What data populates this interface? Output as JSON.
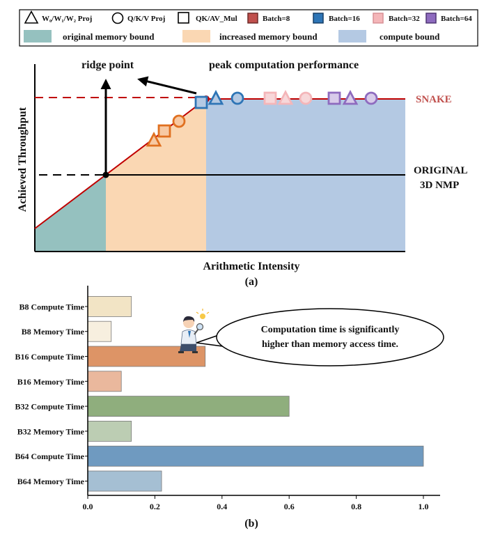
{
  "chart_data": [
    {
      "type": "area",
      "subtitle": "(a)",
      "xlabel": "Arithmetic Intensity",
      "ylabel": "Achieved Throughput",
      "legend": {
        "placement": "top",
        "markers": [
          {
            "shape": "triangle",
            "label": "W₀/W₁/W₂ Proj"
          },
          {
            "shape": "circle",
            "label": "Q/K/V Proj"
          },
          {
            "shape": "square",
            "label": "QK/AV_Mul"
          }
        ],
        "batches": [
          {
            "label": "Batch=8",
            "color": "#c0504d"
          },
          {
            "label": "Batch=16",
            "color": "#2e75b6"
          },
          {
            "label": "Batch=32",
            "color": "#f4b6b9"
          },
          {
            "label": "Batch=64",
            "color": "#8e6bbf"
          }
        ],
        "regions": [
          {
            "label": "original memory bound",
            "color": "#95c1bf"
          },
          {
            "label": "increased memory bound",
            "color": "#fad7b3"
          },
          {
            "label": "compute bound",
            "color": "#b4c9e3"
          }
        ]
      },
      "annotations": {
        "ridge_point": "ridge point",
        "peak": "peak computation performance",
        "snake": "SNAKE",
        "original_line1": "ORIGINAL",
        "original_line2": "3D NMP"
      },
      "points": [
        {
          "shape": "triangle",
          "batch": 8
        },
        {
          "shape": "square",
          "batch": 8
        },
        {
          "shape": "circle",
          "batch": 8
        },
        {
          "shape": "square",
          "batch": 16
        },
        {
          "shape": "triangle",
          "batch": 16
        },
        {
          "shape": "circle",
          "batch": 16
        },
        {
          "shape": "square",
          "batch": 32
        },
        {
          "shape": "triangle",
          "batch": 32
        },
        {
          "shape": "circle",
          "batch": 32
        },
        {
          "shape": "square",
          "batch": 64
        },
        {
          "shape": "triangle",
          "batch": 64
        },
        {
          "shape": "circle",
          "batch": 64
        }
      ]
    },
    {
      "type": "bar",
      "orientation": "horizontal",
      "subtitle": "(b)",
      "categories": [
        "B8 Compute Time",
        "B8 Memory Time",
        "B16 Compute Time",
        "B16 Memory Time",
        "B32 Compute Time",
        "B32 Memory Time",
        "B64 Compute Time",
        "B64 Memory Time"
      ],
      "values": [
        0.13,
        0.07,
        0.35,
        0.1,
        0.6,
        0.13,
        1.0,
        0.22
      ],
      "colors": [
        "#f2e4c5",
        "#f7efdf",
        "#dd9466",
        "#eab89d",
        "#8fae7d",
        "#bccdb3",
        "#6f9ac0",
        "#a5bfd3"
      ],
      "xlim": [
        0,
        1.05
      ],
      "xticks": [
        "0.0",
        "0.2",
        "0.4",
        "0.6",
        "0.8",
        "1.0"
      ],
      "callout": {
        "line1": "Computation time is significantly",
        "line2": "higher than memory access time."
      }
    }
  ]
}
